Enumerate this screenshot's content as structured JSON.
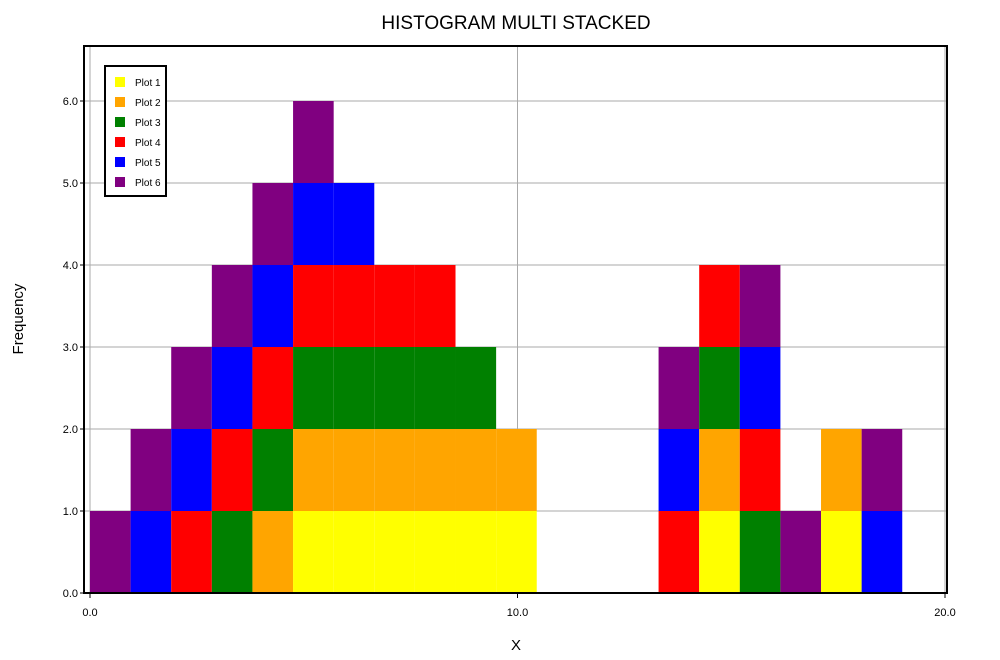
{
  "chart_data": {
    "type": "bar",
    "title": "HISTOGRAM MULTI STACKED",
    "xlabel": "X",
    "ylabel": "Frequency",
    "xlim": [
      0.0,
      20.0
    ],
    "ylim": [
      0.0,
      6.0
    ],
    "x_ticks": [
      "0.0",
      "10.0",
      "20.0"
    ],
    "y_ticks": [
      "0.0",
      "1.0",
      "2.0",
      "3.0",
      "4.0",
      "5.0",
      "6.0"
    ],
    "grid": true,
    "legend_position": "top-left",
    "bin_width": 0.95,
    "bin_starts": [
      0.0,
      0.95,
      1.9,
      2.85,
      3.8,
      4.75,
      5.7,
      6.65,
      7.6,
      8.55,
      9.5,
      10.45,
      11.4,
      12.35,
      13.3,
      14.25,
      15.2,
      16.15,
      17.1,
      18.05,
      19.0
    ],
    "series": [
      {
        "name": "Plot 1",
        "color": "#ffff00",
        "values": [
          0,
          0,
          0,
          0,
          0,
          1,
          1,
          1,
          1,
          1,
          1,
          0,
          0,
          0,
          0,
          1,
          0,
          0,
          1,
          0,
          0
        ]
      },
      {
        "name": "Plot 2",
        "color": "#ffa500",
        "values": [
          0,
          0,
          0,
          0,
          1,
          1,
          1,
          1,
          1,
          1,
          1,
          0,
          0,
          0,
          0,
          1,
          0,
          0,
          1,
          0,
          0
        ]
      },
      {
        "name": "Plot 3",
        "color": "#008000",
        "values": [
          0,
          0,
          0,
          1,
          1,
          1,
          1,
          1,
          1,
          1,
          0,
          0,
          0,
          0,
          0,
          1,
          1,
          0,
          0,
          0,
          0
        ]
      },
      {
        "name": "Plot 4",
        "color": "#ff0000",
        "values": [
          0,
          0,
          1,
          1,
          1,
          1,
          1,
          1,
          1,
          0,
          0,
          0,
          0,
          0,
          1,
          1,
          1,
          0,
          0,
          0,
          0
        ]
      },
      {
        "name": "Plot 5",
        "color": "#0000ff",
        "values": [
          0,
          1,
          1,
          1,
          1,
          1,
          1,
          0,
          0,
          0,
          0,
          0,
          0,
          0,
          1,
          0,
          1,
          0,
          0,
          1,
          0
        ]
      },
      {
        "name": "Plot 6",
        "color": "#800080",
        "values": [
          1,
          1,
          1,
          1,
          1,
          1,
          0,
          0,
          0,
          0,
          0,
          0,
          0,
          0,
          1,
          0,
          1,
          1,
          0,
          1,
          0
        ]
      }
    ]
  }
}
